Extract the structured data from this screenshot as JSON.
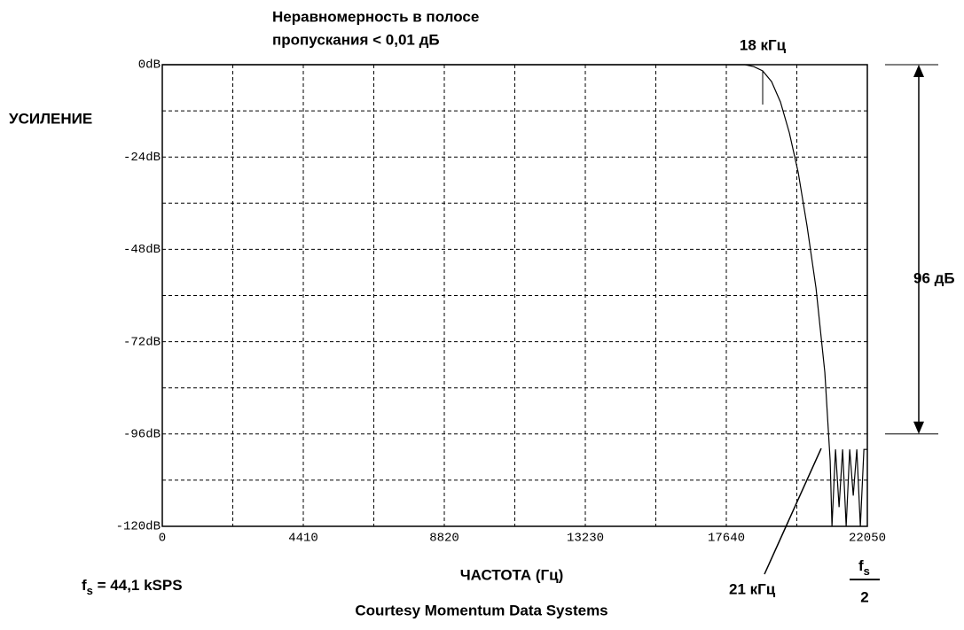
{
  "chart_data": {
    "type": "line",
    "title_lines": [
      "Неравномерность в полосе",
      "пропускания < 0,01 дБ"
    ],
    "y_label": "УСИЛЕНИЕ",
    "x_label": "ЧАСТОТА (Гц)",
    "credit": "Courtesy Momentum Data Systems",
    "passband_label": "18 кГц",
    "stopband_label": "21 кГц",
    "sample_rate": {
      "main": "f",
      "sub": "s",
      "rest": " = 44,1 kSPS"
    },
    "nyquist": {
      "main": "f",
      "sub": "s",
      "denominator": "2"
    },
    "dimension": {
      "label": "96 дБ",
      "from": 0,
      "to": -96
    },
    "color": "#000000",
    "grid": true,
    "xlim": [
      0,
      22050
    ],
    "xticks": [
      0,
      4410,
      8820,
      13230,
      17640,
      22050
    ],
    "minor_xticks": [
      2205,
      6615,
      11025,
      15435,
      19845
    ],
    "ylim": [
      -120,
      0
    ],
    "yticks": [
      {
        "value": 0,
        "label": "0dB"
      },
      {
        "value": -24,
        "label": "-24dB"
      },
      {
        "value": -48,
        "label": "-48dB"
      },
      {
        "value": -72,
        "label": "-72dB"
      },
      {
        "value": -96,
        "label": "-96dB"
      },
      {
        "value": -120,
        "label": "-120dB"
      }
    ],
    "minor_yticks": [
      -12,
      -36,
      -60,
      -84,
      -108
    ],
    "x": [
      0,
      18222,
      18500,
      18777,
      19055,
      19333,
      19611,
      19888,
      20166,
      20444,
      20721,
      20888,
      20944,
      21055,
      21166,
      21277,
      21388,
      21499,
      21610,
      21721,
      21832,
      21943,
      22050
    ],
    "values": [
      0,
      0,
      -0.5,
      -1.6,
      -4.4,
      -9.7,
      -17.7,
      -28,
      -42,
      -58,
      -80,
      -103,
      -120,
      -100,
      -115,
      -100,
      -120,
      -100,
      -112,
      -100,
      -120,
      -100,
      -100
    ]
  }
}
